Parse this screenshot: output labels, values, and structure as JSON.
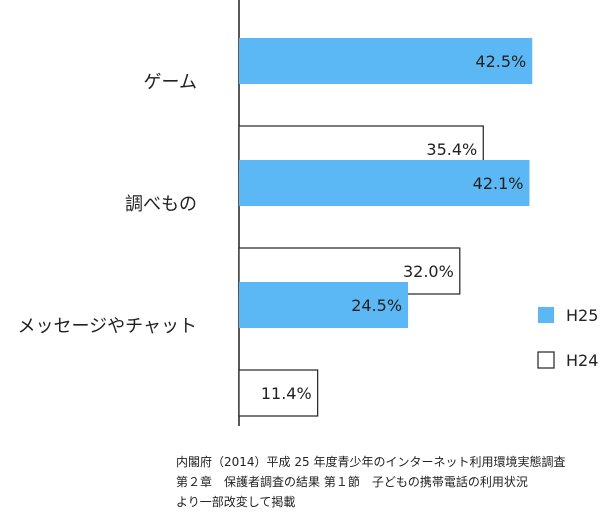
{
  "chart_data": {
    "type": "bar",
    "orientation": "horizontal",
    "categories": [
      "ゲーム",
      "調べもの",
      "メッセージやチャット"
    ],
    "series": [
      {
        "name": "H25",
        "values": [
          42.5,
          42.1,
          24.5
        ],
        "color": "#5bb8f5"
      },
      {
        "name": "H24",
        "values": [
          35.4,
          32.0,
          11.4
        ],
        "color": "#ffffff"
      }
    ],
    "value_labels": [
      [
        "42.5%",
        "42.1%",
        "24.5%"
      ],
      [
        "35.4%",
        "32.0%",
        "11.4%"
      ]
    ],
    "xlim": [
      0,
      50
    ],
    "grid": false,
    "legend_position": "right"
  },
  "source": {
    "lines": [
      "内閣府（2014）平成 25 年度青少年のインターネット利用環境実態調査",
      "第２章　保護者調査の結果 第１節　子どもの携帯電話の利用状況",
      "より一部改変して掲載"
    ]
  }
}
